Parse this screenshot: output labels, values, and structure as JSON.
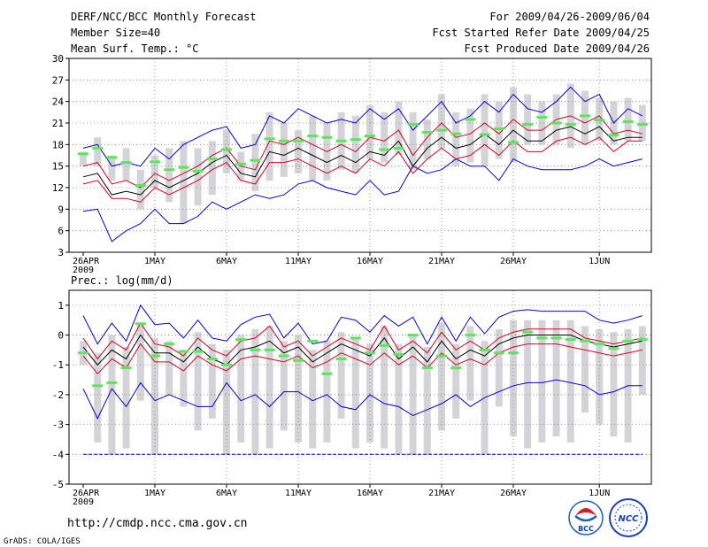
{
  "header": {
    "title": "DERF/NCC/BCC Monthly Forecast",
    "member_size": "Member Size=40",
    "var1": "Mean Surf. Temp.: °C",
    "period": "For 2009/04/26-2009/06/04",
    "started": "Fcst Started Refer Date 2009/04/25",
    "produced": "Fcst Produced Date 2009/04/26"
  },
  "footer": {
    "url": "http://cmdp.ncc.cma.gov.cn",
    "grads": "GrADS: COLA/IGES",
    "logo1": "BCC",
    "logo2": "NCC"
  },
  "colors": {
    "blue": "#0000d8",
    "red": "#d80020",
    "black": "#000000",
    "green": "#5ce65c",
    "bar": "#d4d4d8",
    "grid": "#808080"
  },
  "chart_data": [
    {
      "type": "box",
      "name": "temperature",
      "title": "Mean Surf. Temp.: °C",
      "ylim": [
        3,
        30
      ],
      "yticks": [
        3,
        6,
        9,
        12,
        15,
        18,
        21,
        24,
        27,
        30
      ],
      "xlabels": [
        "26APR",
        "1MAY",
        "6MAY",
        "11MAY",
        "16MAY",
        "21MAY",
        "26MAY",
        "1JUN"
      ],
      "xlabel_year": "2009",
      "days": 40,
      "series": {
        "max": [
          17.5,
          18,
          15,
          15.5,
          15,
          17.5,
          16,
          18,
          19,
          20,
          20.5,
          17.5,
          18,
          22,
          21,
          23,
          22,
          21,
          21.5,
          21,
          23,
          21.5,
          23,
          20,
          22,
          24,
          21,
          22,
          24,
          22.5,
          25,
          23,
          22.5,
          24,
          26,
          24,
          25,
          21,
          23,
          22
        ],
        "p_upper": [
          15,
          15.5,
          12.5,
          13,
          12,
          14,
          13,
          14,
          15,
          16.5,
          17.5,
          15,
          14.5,
          18.5,
          18,
          19,
          18,
          17,
          18,
          17,
          19,
          18.5,
          20,
          16.5,
          19,
          21,
          19,
          19.5,
          21,
          19.5,
          21.5,
          20,
          20,
          21.5,
          22,
          21,
          22,
          19.5,
          20,
          19.5
        ],
        "mean": [
          13.5,
          14,
          11,
          11.5,
          11,
          13,
          12,
          13,
          14,
          15.5,
          16.5,
          14,
          13.5,
          17,
          16.5,
          17.5,
          16.5,
          15.5,
          16.5,
          15.5,
          17,
          16.5,
          18.5,
          15,
          17.5,
          19,
          17.5,
          18,
          19.5,
          18,
          20,
          18.5,
          18.5,
          20,
          20.5,
          19.5,
          20.5,
          18.5,
          19,
          19
        ],
        "p_lower": [
          12.5,
          13,
          10.5,
          10.5,
          10,
          12,
          11,
          12,
          13,
          14.5,
          15.5,
          13,
          12.5,
          15.5,
          15.5,
          16,
          15,
          14,
          15,
          14,
          16,
          15,
          17,
          14,
          16,
          17.5,
          16,
          16.5,
          18,
          16.5,
          18.5,
          17,
          17,
          18.5,
          19,
          18,
          19,
          17,
          18.5,
          18.5
        ],
        "min": [
          8.7,
          9,
          4.5,
          6,
          7,
          9,
          7,
          7,
          8,
          10,
          9,
          10,
          11,
          10.5,
          11,
          12.5,
          13,
          12,
          11.5,
          11,
          13,
          11,
          11.5,
          15,
          14,
          14.5,
          16,
          15,
          15,
          13,
          16,
          15,
          14.5,
          14.5,
          14.5,
          15,
          16,
          15,
          15.5,
          16
        ],
        "bar_top": [
          17,
          19,
          16.5,
          17.5,
          14.5,
          16.5,
          17.5,
          18.5,
          17.5,
          18.5,
          20,
          17,
          19.5,
          22.5,
          21,
          20,
          22,
          21,
          22.5,
          22,
          23.5,
          22.5,
          24,
          22.5,
          21.5,
          25,
          22.5,
          23,
          25,
          24,
          26,
          25,
          24,
          25,
          26.5,
          25.5,
          24.5,
          24,
          24.5,
          23.5
        ],
        "bar_bot": [
          15,
          15,
          13,
          13,
          9,
          12,
          10,
          7,
          9.5,
          11,
          14,
          13,
          11.5,
          13,
          13.5,
          14,
          13,
          13,
          14.5,
          14,
          16,
          15.5,
          16.5,
          14.5,
          16,
          17.5,
          15,
          15.5,
          15,
          16,
          15.5,
          18,
          18,
          18,
          17.5,
          18,
          18.5,
          18,
          18.5,
          18.5
        ],
        "obs": [
          16.7,
          17.5,
          16.2,
          15.5,
          12.3,
          15.6,
          14.5,
          14.8,
          14.3,
          16,
          17.3,
          15.3,
          15.8,
          18.8,
          18.5,
          18.5,
          19.2,
          19,
          18.5,
          18.7,
          19.2,
          17.3,
          17.5,
          20.8,
          19.7,
          20,
          19.5,
          21.5,
          19.4,
          20.2,
          18.3,
          20.8,
          21.8,
          21,
          20.8,
          22,
          21.4,
          19.3,
          21.2,
          20.8
        ]
      }
    },
    {
      "type": "box",
      "name": "precipitation",
      "title": "Prec.: log(mm/d)",
      "ylim": [
        -5,
        1.5
      ],
      "yticks": [
        -5,
        -4,
        -3,
        -2,
        -1,
        0,
        1
      ],
      "xlabels": [
        "26APR",
        "1MAY",
        "6MAY",
        "11MAY",
        "16MAY",
        "21MAY",
        "26MAY",
        "1JUN"
      ],
      "xlabel_year": "2009",
      "days": 40,
      "series": {
        "max": [
          0.65,
          -0.3,
          0.4,
          -0.2,
          1,
          0.35,
          0.4,
          -0.1,
          0.5,
          -0.1,
          -0.2,
          0.35,
          0.6,
          0.7,
          -0.1,
          0.4,
          -0.3,
          -0.2,
          0.6,
          0.5,
          0.1,
          0.65,
          0.3,
          0.6,
          -0.3,
          0.6,
          -0.2,
          0.6,
          0.05,
          0.6,
          0.8,
          0.85,
          0.8,
          0.8,
          0.8,
          0.8,
          0.5,
          0.4,
          0.5,
          0.65
        ],
        "p_upper": [
          -0.1,
          -0.8,
          -0.2,
          -0.5,
          0.4,
          -0.3,
          -0.4,
          -0.7,
          -0.1,
          -0.5,
          -0.7,
          -0.2,
          -0.1,
          0.3,
          -0.4,
          -0.2,
          -0.7,
          -0.4,
          -0.1,
          -0.3,
          -0.5,
          0.3,
          -0.5,
          -0.2,
          -0.6,
          0.1,
          -0.5,
          -0.2,
          -0.5,
          -0.1,
          0.1,
          0.2,
          0.2,
          0.2,
          0.2,
          -0.1,
          -0.2,
          -0.3,
          -0.2,
          -0.1
        ],
        "mean": [
          -0.4,
          -1.0,
          -0.5,
          -0.8,
          0.0,
          -0.6,
          -0.6,
          -0.9,
          -0.4,
          -0.8,
          -1.0,
          -0.5,
          -0.4,
          -0.2,
          -0.6,
          -0.4,
          -0.9,
          -0.6,
          -0.3,
          -0.5,
          -0.7,
          -0.1,
          -0.8,
          -0.4,
          -0.9,
          -0.2,
          -0.8,
          -0.5,
          -0.7,
          -0.3,
          -0.1,
          0.0,
          0.0,
          0.0,
          0.0,
          -0.2,
          -0.3,
          -0.4,
          -0.3,
          -0.2
        ],
        "p_lower": [
          -0.7,
          -1.3,
          -0.8,
          -1.1,
          -0.3,
          -0.9,
          -0.9,
          -1.2,
          -0.7,
          -1.0,
          -1.2,
          -0.8,
          -0.7,
          -0.8,
          -0.9,
          -0.7,
          -1.1,
          -0.9,
          -0.6,
          -0.8,
          -1.0,
          -0.6,
          -1.0,
          -0.7,
          -1.1,
          -0.6,
          -1.0,
          -0.8,
          -1.0,
          -0.6,
          -0.4,
          -0.3,
          -0.3,
          -0.3,
          -0.4,
          -0.5,
          -0.6,
          -0.7,
          -0.6,
          -0.5
        ],
        "min": [
          -1.8,
          -2.8,
          -1.8,
          -2.4,
          -1.6,
          -2.2,
          -2.0,
          -2.2,
          -2.4,
          -2.4,
          -1.6,
          -2.2,
          -2.0,
          -2.4,
          -1.9,
          -1.9,
          -2.2,
          -2.0,
          -2.4,
          -2.5,
          -2.0,
          -2.3,
          -2.4,
          -2.7,
          -2.5,
          -2.3,
          -2.0,
          -2.4,
          -2.1,
          -1.9,
          -1.7,
          -1.6,
          -1.6,
          -1.5,
          -1.6,
          -1.7,
          -2.0,
          -1.9,
          -1.7,
          -1.7
        ],
        "bar_top": [
          -0.2,
          -0.6,
          0.0,
          -0.4,
          0.4,
          -0.1,
          -0.2,
          -0.5,
          0.1,
          -0.3,
          -0.5,
          0.0,
          0.2,
          0.3,
          -0.2,
          0.0,
          -0.5,
          -0.2,
          0.1,
          -0.1,
          -0.3,
          0.3,
          -0.3,
          0.0,
          -0.4,
          0.4,
          -0.3,
          0.3,
          -0.2,
          0.2,
          0.5,
          0.5,
          0.5,
          0.5,
          0.5,
          0.3,
          0.2,
          0.1,
          0.2,
          0.3
        ],
        "bar_bot": [
          -1.0,
          -3.6,
          -4.0,
          -3.8,
          -2.2,
          -4.0,
          -2.0,
          -2.4,
          -3.2,
          -2.8,
          -4.0,
          -3.6,
          -4.0,
          -3.8,
          -3.2,
          -3.6,
          -3.8,
          -3.6,
          -2.8,
          -3.8,
          -3.6,
          -3.8,
          -4.0,
          -4.0,
          -4.0,
          -3.2,
          -2.8,
          -2.2,
          -4.0,
          -2.4,
          -3.4,
          -3.8,
          -3.6,
          -3.4,
          -3.6,
          -2.6,
          -3.0,
          -3.4,
          -3.6,
          -2.0
        ],
        "obs": [
          -0.6,
          -1.7,
          -1.6,
          -1.1,
          0.38,
          -0.7,
          -0.3,
          -0.55,
          -0.55,
          -0.8,
          -1.0,
          -0.15,
          -0.5,
          -0.5,
          -0.7,
          -0.85,
          -0.2,
          -1.3,
          -0.8,
          -0.1,
          -0.6,
          -0.35,
          -0.65,
          0.0,
          -1.1,
          -0.7,
          -1.1,
          0.0,
          -0.5,
          -0.6,
          -0.6,
          0.1,
          -0.1,
          -0.1,
          -0.15,
          -0.2,
          -0.3,
          -0.45,
          -0.2,
          -0.15
        ],
        "floor": -4
      }
    }
  ]
}
